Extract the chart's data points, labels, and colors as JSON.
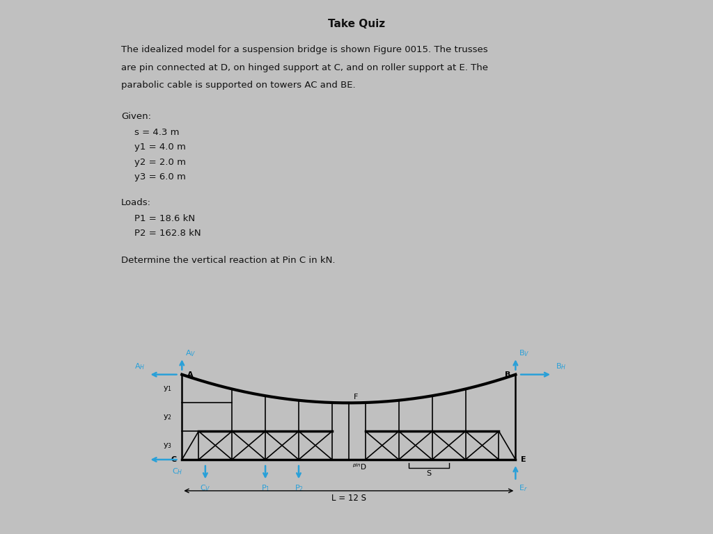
{
  "title": "Take Quiz",
  "bg_outer": "#c0c0c0",
  "bg_card": "#e8e8e8",
  "text_color": "#111111",
  "blue_color": "#29a0d8",
  "paragraph_lines": [
    "The idealized model for a suspension bridge is shown Figure 0015. The trusses",
    "are pin connected at D, on hinged support at C, and on roller support at E. The",
    "parabolic cable is supported on towers AC and BE."
  ],
  "given_label": "Given:",
  "given_items": [
    "s = 4.3 m",
    "y1 = 4.0 m",
    "y2 = 2.0 m",
    "y3 = 6.0 m"
  ],
  "loads_label": "Loads:",
  "loads_items": [
    "P1 = 18.6 kN",
    "P2 = 162.8 kN"
  ],
  "question": "Determine the vertical reaction at Pin C in kN."
}
